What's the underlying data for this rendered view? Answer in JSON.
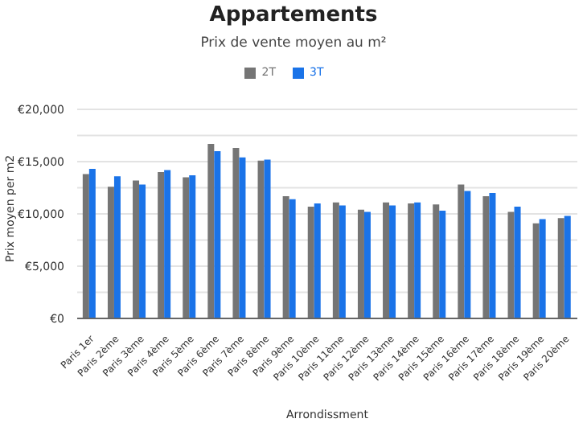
{
  "chart_data": {
    "type": "bar",
    "title": "Appartements",
    "subtitle": "Prix de vente moyen au m²",
    "xlabel": "Arrondissment",
    "ylabel": "Prix moyen per m2",
    "categories": [
      "Paris 1er",
      "Paris 2ème",
      "Paris 3ème",
      "Paris 4ème",
      "Paris 5ème",
      "Paris 6ème",
      "Paris 7ème",
      "Paris 8ème",
      "Paris 9ème",
      "Paris 10ème",
      "Paris 11ème",
      "Paris 12ème",
      "Paris 13ème",
      "Paris 14ème",
      "Paris 15ème",
      "Paris 16ème",
      "Paris 17ème",
      "Paris 18ème",
      "Paris 19ème",
      "Paris 20ème"
    ],
    "series": [
      {
        "name": "2T",
        "color": "#757575",
        "values": [
          13800,
          12600,
          13200,
          14000,
          13500,
          16700,
          16300,
          15100,
          11700,
          10700,
          11100,
          10400,
          11100,
          11000,
          10900,
          12800,
          11700,
          10200,
          9100,
          9600
        ]
      },
      {
        "name": "3T",
        "color": "#1a73e8",
        "values": [
          14300,
          13600,
          12800,
          14200,
          13700,
          16000,
          15400,
          15200,
          11400,
          11000,
          10800,
          10200,
          10800,
          11100,
          10300,
          12200,
          12000,
          10700,
          9500,
          9800
        ]
      }
    ],
    "ylim": [
      0,
      20000
    ],
    "yticks": [
      {
        "value": 0,
        "label": "€0"
      },
      {
        "value": 2500,
        "label": null
      },
      {
        "value": 5000,
        "label": "€5,000"
      },
      {
        "value": 7500,
        "label": null
      },
      {
        "value": 10000,
        "label": "€10,000"
      },
      {
        "value": 12500,
        "label": null
      },
      {
        "value": 15000,
        "label": "€15,000"
      },
      {
        "value": 17500,
        "label": null
      },
      {
        "value": 20000,
        "label": "€20,000"
      }
    ],
    "grid": "y",
    "legend": "top"
  }
}
